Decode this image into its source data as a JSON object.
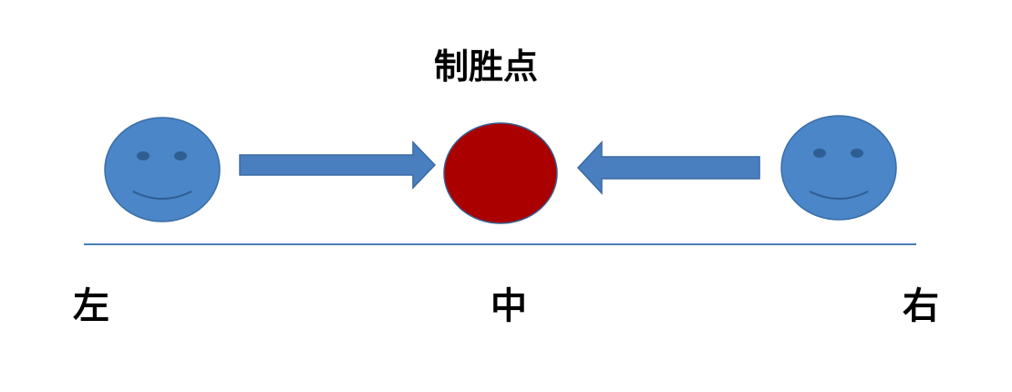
{
  "title": "制胜点",
  "labels": {
    "left": "左",
    "center": "中",
    "right": "右"
  },
  "colors": {
    "face_fill": "#4a86c8",
    "face_stroke": "#3c6ea6",
    "feature": "#2f5e92",
    "arrow_fill": "#4a7fbf",
    "arrow_stroke": "#3a68a0",
    "target_fill": "#aa0000",
    "target_stroke": "#3a5f8f",
    "baseline": "#4a7fb5"
  },
  "icons": {
    "left_face": "smiley-face-icon",
    "right_face": "smiley-face-icon",
    "target": "red-circle-target"
  }
}
